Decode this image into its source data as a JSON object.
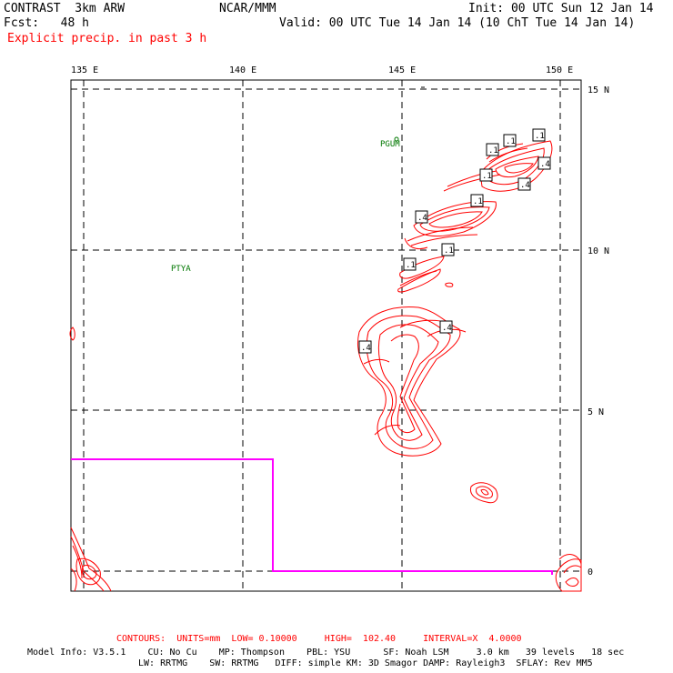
{
  "header": {
    "title_left": "CONTRAST  3km ARW",
    "fcst": "Fcst:   48 h",
    "center": "NCAR/MMM",
    "init": "Init: 00 UTC Sun 12 Jan 14",
    "valid": "Valid: 00 UTC Tue 14 Jan 14 (10 ChT Tue 14 Jan 14)",
    "field": "Explicit precip. in past 3 h"
  },
  "map": {
    "lon_labels": [
      "135 E",
      "140 E",
      "145 E",
      "150 E"
    ],
    "lat_labels": [
      "15 N",
      "10 N",
      "5 N",
      "0"
    ],
    "stations": [
      {
        "name": "PGUM",
        "lon": 144.8,
        "lat": 13.5
      },
      {
        "name": "PTYA",
        "lon": 138.1,
        "lat": 9.5
      }
    ],
    "contour_labels": [
      ".1",
      ".1",
      ".1",
      ".4",
      ".1",
      ".4",
      ".1",
      ".4",
      ".1",
      ".1",
      ".4",
      ".4"
    ],
    "colors": {
      "contour": "#ff0000",
      "domain_box": "#ff00ff",
      "stations": "#007700",
      "frame": "#000000"
    }
  },
  "footer": {
    "contours": "CONTOURS:  UNITS=mm  LOW= 0.10000     HIGH=  102.40     INTERVAL=X  4.0000",
    "model_info": "Model Info: V3.5.1    CU: No Cu    MP: Thompson    PBL: YSU      SF: Noah LSM     3.0 km   39 levels   18 sec",
    "model_info2": "LW: RRTMG    SW: RRTMG   DIFF: simple KM: 3D Smagor DAMP: Rayleigh3  SFLAY: Rev MM5"
  }
}
